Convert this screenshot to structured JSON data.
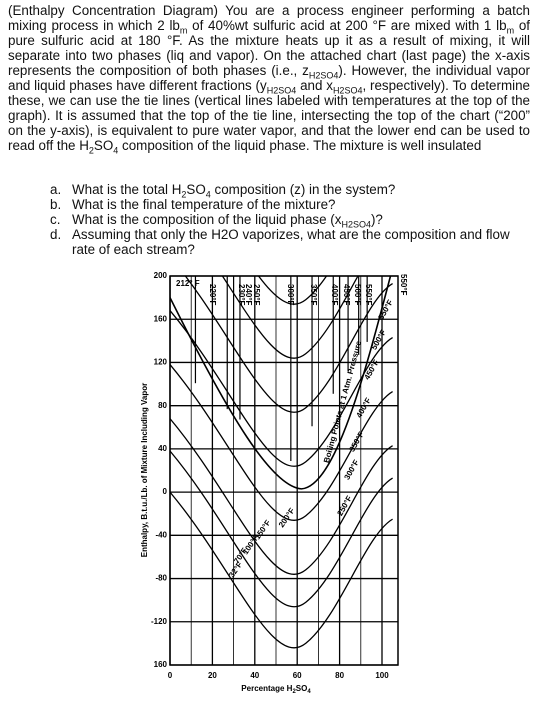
{
  "paragraph": [
    "(Enthalpy Concentration Diagram) You are a process engineer performing a batch mixing process in which 2 lb",
    "m",
    " of 40%wt sulfuric acid at 200 °F are mixed with 1 lb",
    "m",
    " of pure sulfuric acid at 180 °F. As the mixture heats up it as a result of mixing, it will separate into two phases (liq and vapor). On the attached chart (last page) the x-axis represents the composition of both phases (i.e., z",
    "H2SO4",
    "). However, the individual vapor and liquid phases have different fractions (y",
    "H2SO4",
    " and x",
    "H2SO4",
    ", respectively). To determine these, we can use the tie lines (vertical lines labeled with temperatures at the top of the graph). It is assumed that the top of the tie line, intersecting the top of the chart (“200” on the y-axis), is equivalent to pure water vapor, and that the lower end can be used to read off the H",
    "2",
    "SO",
    "4",
    " composition of the liquid phase. The mixture is well insulated"
  ],
  "questions": [
    {
      "marker": "a.",
      "runs": [
        "What is the total H",
        "2",
        "SO",
        "4",
        " composition (z) in the system?"
      ]
    },
    {
      "marker": "b.",
      "runs": [
        "What is the final temperature of the mixture?"
      ]
    },
    {
      "marker": "c.",
      "runs": [
        "What is the composition of the liquid phase (x",
        "H2SO4",
        ")?"
      ]
    },
    {
      "marker": "d.",
      "runs": [
        "Assuming that only the H2O vaporizes, what are the composition and flow rate of each stream?"
      ]
    }
  ],
  "figure": {
    "y_label": "Enthalpy, B.t.u./Lb. of Mixture Including Vapor",
    "x_label": [
      "Percentage H",
      "2",
      "SO",
      "4"
    ],
    "xlim": [
      0,
      100
    ],
    "ylim": [
      -160,
      200
    ],
    "xticks": [
      0,
      20,
      40,
      60,
      80,
      100
    ],
    "yticks": [
      200,
      160,
      120,
      80,
      40,
      0,
      -40,
      -80,
      -120,
      {
        "value": -160,
        "label": "160"
      }
    ],
    "top_labels": [
      "212° F",
      "220°F",
      "230°F",
      "240°F",
      "250°F",
      "300°F",
      "350°F",
      "400°F",
      "450°F",
      "500°F",
      "550°F",
      "550°F"
    ],
    "isotherm_labels": [
      "200°F",
      "150°F",
      "100°F",
      "70°F",
      "32°F"
    ],
    "right_labels": [
      "250°F",
      "300°F",
      "350°F",
      "400°F",
      "450°F",
      "500°F",
      "550°F"
    ],
    "boiling_label": "Boiling Points at 1 Atm. Pressure"
  }
}
